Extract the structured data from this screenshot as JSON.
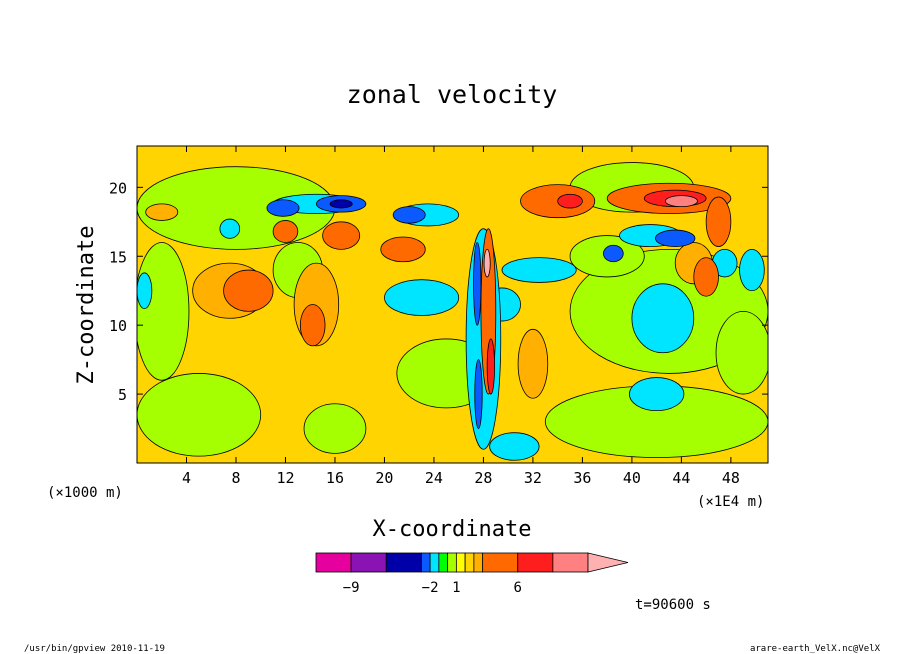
{
  "chart_data": {
    "type": "heatmap",
    "title": "zonal velocity",
    "xlabel": "X-coordinate",
    "ylabel": "Z-coordinate",
    "x_unit_left": "(×1000 m)",
    "x_unit_right": "(×1E4 m)",
    "xlim": [
      0,
      51
    ],
    "ylim": [
      0,
      23
    ],
    "x_ticks": [
      4,
      8,
      12,
      16,
      20,
      24,
      28,
      32,
      36,
      40,
      44,
      48
    ],
    "y_ticks": [
      5,
      10,
      15,
      20
    ],
    "grid": false,
    "colorbar": {
      "levels": [
        -12,
        -9,
        -6,
        -3,
        -2,
        -1,
        0,
        1,
        2,
        3,
        4,
        6,
        9,
        12
      ],
      "colors": [
        "#e6009e",
        "#8c13b3",
        "#0000a8",
        "#0a5aff",
        "#00e5ff",
        "#00ff00",
        "#a6ff00",
        "#ffff00",
        "#ffd400",
        "#ffb000",
        "#ff6a00",
        "#ff1e1e",
        "#ff8080",
        "#ffb0b0"
      ],
      "tick_labels": [
        {
          "level": -9,
          "label": "−9"
        },
        {
          "level": -2,
          "label": "−2"
        },
        {
          "level": 1,
          "label": "1"
        },
        {
          "level": 6,
          "label": "6"
        }
      ]
    },
    "regions": [
      {
        "shape": "rect",
        "x": [
          0,
          51
        ],
        "z": [
          0,
          23
        ],
        "value": 1.5
      },
      {
        "shape": "ellipse",
        "cx": 8,
        "cz": 18.5,
        "rx": 8,
        "rz": 3,
        "value": -0.5
      },
      {
        "shape": "ellipse",
        "cx": 40,
        "cz": 20,
        "rx": 5,
        "rz": 1.8,
        "value": -0.5
      },
      {
        "shape": "ellipse",
        "cx": 2,
        "cz": 11,
        "rx": 2.2,
        "rz": 5,
        "value": -0.5
      },
      {
        "shape": "ellipse",
        "cx": 25,
        "cz": 6.5,
        "rx": 4,
        "rz": 2.5,
        "value": -0.5
      },
      {
        "shape": "ellipse",
        "cx": 43,
        "cz": 11,
        "rx": 8,
        "rz": 4.5,
        "value": -0.5
      },
      {
        "shape": "ellipse",
        "cx": 42,
        "cz": 3,
        "rx": 9,
        "rz": 2.6,
        "value": -0.5
      },
      {
        "shape": "ellipse",
        "cx": 5,
        "cz": 3.5,
        "rx": 5,
        "rz": 3,
        "value": -0.5
      },
      {
        "shape": "ellipse",
        "cx": 16,
        "cz": 2.5,
        "rx": 2.5,
        "rz": 1.8,
        "value": -0.5
      },
      {
        "shape": "ellipse",
        "cx": 38,
        "cz": 15,
        "rx": 3,
        "rz": 1.5,
        "value": -0.5
      },
      {
        "shape": "ellipse",
        "cx": 49,
        "cz": 8,
        "rx": 2.2,
        "rz": 3,
        "value": -0.5
      },
      {
        "shape": "ellipse",
        "cx": 13,
        "cz": 14,
        "rx": 2,
        "rz": 2,
        "value": -0.5
      },
      {
        "shape": "ellipse",
        "cx": 7.5,
        "cz": 12.5,
        "rx": 3,
        "rz": 2,
        "value": 2.5
      },
      {
        "shape": "ellipse",
        "cx": 14.5,
        "cz": 11.5,
        "rx": 1.8,
        "rz": 3,
        "value": 2.5
      },
      {
        "shape": "ellipse",
        "cx": 2,
        "cz": 18.2,
        "rx": 1.3,
        "rz": 0.6,
        "value": 2.5
      },
      {
        "shape": "ellipse",
        "cx": 32,
        "cz": 7.2,
        "rx": 1.2,
        "rz": 2.5,
        "value": 2.5
      },
      {
        "shape": "ellipse",
        "cx": 45,
        "cz": 14.5,
        "rx": 1.5,
        "rz": 1.5,
        "value": 2.5
      },
      {
        "shape": "ellipse",
        "cx": 14.5,
        "cz": 18.8,
        "rx": 3.5,
        "rz": 0.7,
        "value": -2.5
      },
      {
        "shape": "ellipse",
        "cx": 23.5,
        "cz": 18,
        "rx": 2.5,
        "rz": 0.8,
        "value": -2.5
      },
      {
        "shape": "ellipse",
        "cx": 32.5,
        "cz": 14,
        "rx": 3,
        "rz": 0.9,
        "value": -2.5
      },
      {
        "shape": "ellipse",
        "cx": 41.5,
        "cz": 16.5,
        "rx": 2.5,
        "rz": 0.8,
        "value": -2.5
      },
      {
        "shape": "ellipse",
        "cx": 23,
        "cz": 12,
        "rx": 3,
        "rz": 1.3,
        "value": -2.5
      },
      {
        "shape": "ellipse",
        "cx": 29.5,
        "cz": 11.5,
        "rx": 1.5,
        "rz": 1.2,
        "value": -2.5
      },
      {
        "shape": "ellipse",
        "cx": 42,
        "cz": 5,
        "rx": 2.2,
        "rz": 1.2,
        "value": -2.5
      },
      {
        "shape": "ellipse",
        "cx": 47.5,
        "cz": 14.5,
        "rx": 1,
        "rz": 1,
        "value": -2.5
      },
      {
        "shape": "ellipse",
        "cx": 49.7,
        "cz": 14,
        "rx": 1,
        "rz": 1.5,
        "value": -2.5
      },
      {
        "shape": "ellipse",
        "cx": 42.5,
        "cz": 10.5,
        "rx": 2.5,
        "rz": 2.5,
        "value": -2.5
      },
      {
        "shape": "ellipse",
        "cx": 7.5,
        "cz": 17,
        "rx": 0.8,
        "rz": 0.7,
        "value": -2.5
      },
      {
        "shape": "ellipse",
        "cx": 30.5,
        "cz": 1.2,
        "rx": 2,
        "rz": 1,
        "value": -2.5
      },
      {
        "shape": "ellipse",
        "cx": 0.6,
        "cz": 12.5,
        "rx": 0.6,
        "rz": 1.3,
        "value": -2.5
      },
      {
        "shape": "ellipse",
        "cx": 11.8,
        "cz": 18.5,
        "rx": 1.3,
        "rz": 0.6,
        "value": -5
      },
      {
        "shape": "ellipse",
        "cx": 16.5,
        "cz": 18.8,
        "rx": 2,
        "rz": 0.6,
        "value": -5
      },
      {
        "shape": "ellipse",
        "cx": 22,
        "cz": 18,
        "rx": 1.3,
        "rz": 0.6,
        "value": -5
      },
      {
        "shape": "ellipse",
        "cx": 43.5,
        "cz": 16.3,
        "rx": 1.6,
        "rz": 0.6,
        "value": -5
      },
      {
        "shape": "ellipse",
        "cx": 38.5,
        "cz": 15.2,
        "rx": 0.8,
        "rz": 0.6,
        "value": -5
      },
      {
        "shape": "ellipse",
        "cx": 16.5,
        "cz": 18.8,
        "rx": 0.9,
        "rz": 0.3,
        "value": -7
      },
      {
        "shape": "ellipse",
        "cx": 34,
        "cz": 19,
        "rx": 3,
        "rz": 1.2,
        "value": 3.5
      },
      {
        "shape": "ellipse",
        "cx": 43,
        "cz": 19.2,
        "rx": 5,
        "rz": 1.1,
        "value": 3.5
      },
      {
        "shape": "ellipse",
        "cx": 47,
        "cz": 17.5,
        "rx": 1,
        "rz": 1.8,
        "value": 3.5
      },
      {
        "shape": "ellipse",
        "cx": 16.5,
        "cz": 16.5,
        "rx": 1.5,
        "rz": 1,
        "value": 3.5
      },
      {
        "shape": "ellipse",
        "cx": 21.5,
        "cz": 15.5,
        "rx": 1.8,
        "rz": 0.9,
        "value": 3.5
      },
      {
        "shape": "ellipse",
        "cx": 12,
        "cz": 16.8,
        "rx": 1,
        "rz": 0.8,
        "value": 3.5
      },
      {
        "shape": "ellipse",
        "cx": 9,
        "cz": 12.5,
        "rx": 2,
        "rz": 1.5,
        "value": 3.5
      },
      {
        "shape": "ellipse",
        "cx": 14.2,
        "cz": 10,
        "rx": 1,
        "rz": 1.5,
        "value": 3.5
      },
      {
        "shape": "ellipse",
        "cx": 46,
        "cz": 13.5,
        "rx": 1,
        "rz": 1.4,
        "value": 3.5
      },
      {
        "shape": "ellipse",
        "cx": 43.5,
        "cz": 19.2,
        "rx": 2.5,
        "rz": 0.6,
        "value": 5
      },
      {
        "shape": "ellipse",
        "cx": 35,
        "cz": 19,
        "rx": 1,
        "rz": 0.5,
        "value": 5
      },
      {
        "shape": "ellipse",
        "cx": 44,
        "cz": 19,
        "rx": 1.3,
        "rz": 0.4,
        "value": 7
      },
      {
        "shape": "ellipse",
        "cx": 28,
        "cz": 9,
        "rx": 1.4,
        "rz": 8,
        "value": -2.5
      },
      {
        "shape": "ellipse",
        "cx": 28.4,
        "cz": 11,
        "rx": 0.6,
        "rz": 6,
        "value": 3.5
      },
      {
        "shape": "ellipse",
        "cx": 27.5,
        "cz": 13,
        "rx": 0.3,
        "rz": 3,
        "value": -5
      },
      {
        "shape": "ellipse",
        "cx": 28.6,
        "cz": 7,
        "rx": 0.3,
        "rz": 2,
        "value": 5
      },
      {
        "shape": "ellipse",
        "cx": 27.6,
        "cz": 5,
        "rx": 0.3,
        "rz": 2.5,
        "value": -5
      },
      {
        "shape": "ellipse",
        "cx": 28.3,
        "cz": 14.5,
        "rx": 0.25,
        "rz": 1,
        "value": 10
      }
    ],
    "annotations": [
      "t=90600 s"
    ]
  },
  "footer": {
    "left": "/usr/bin/gpview  2010-11-19",
    "right": "arare-earth_VelX.nc@VelX"
  }
}
